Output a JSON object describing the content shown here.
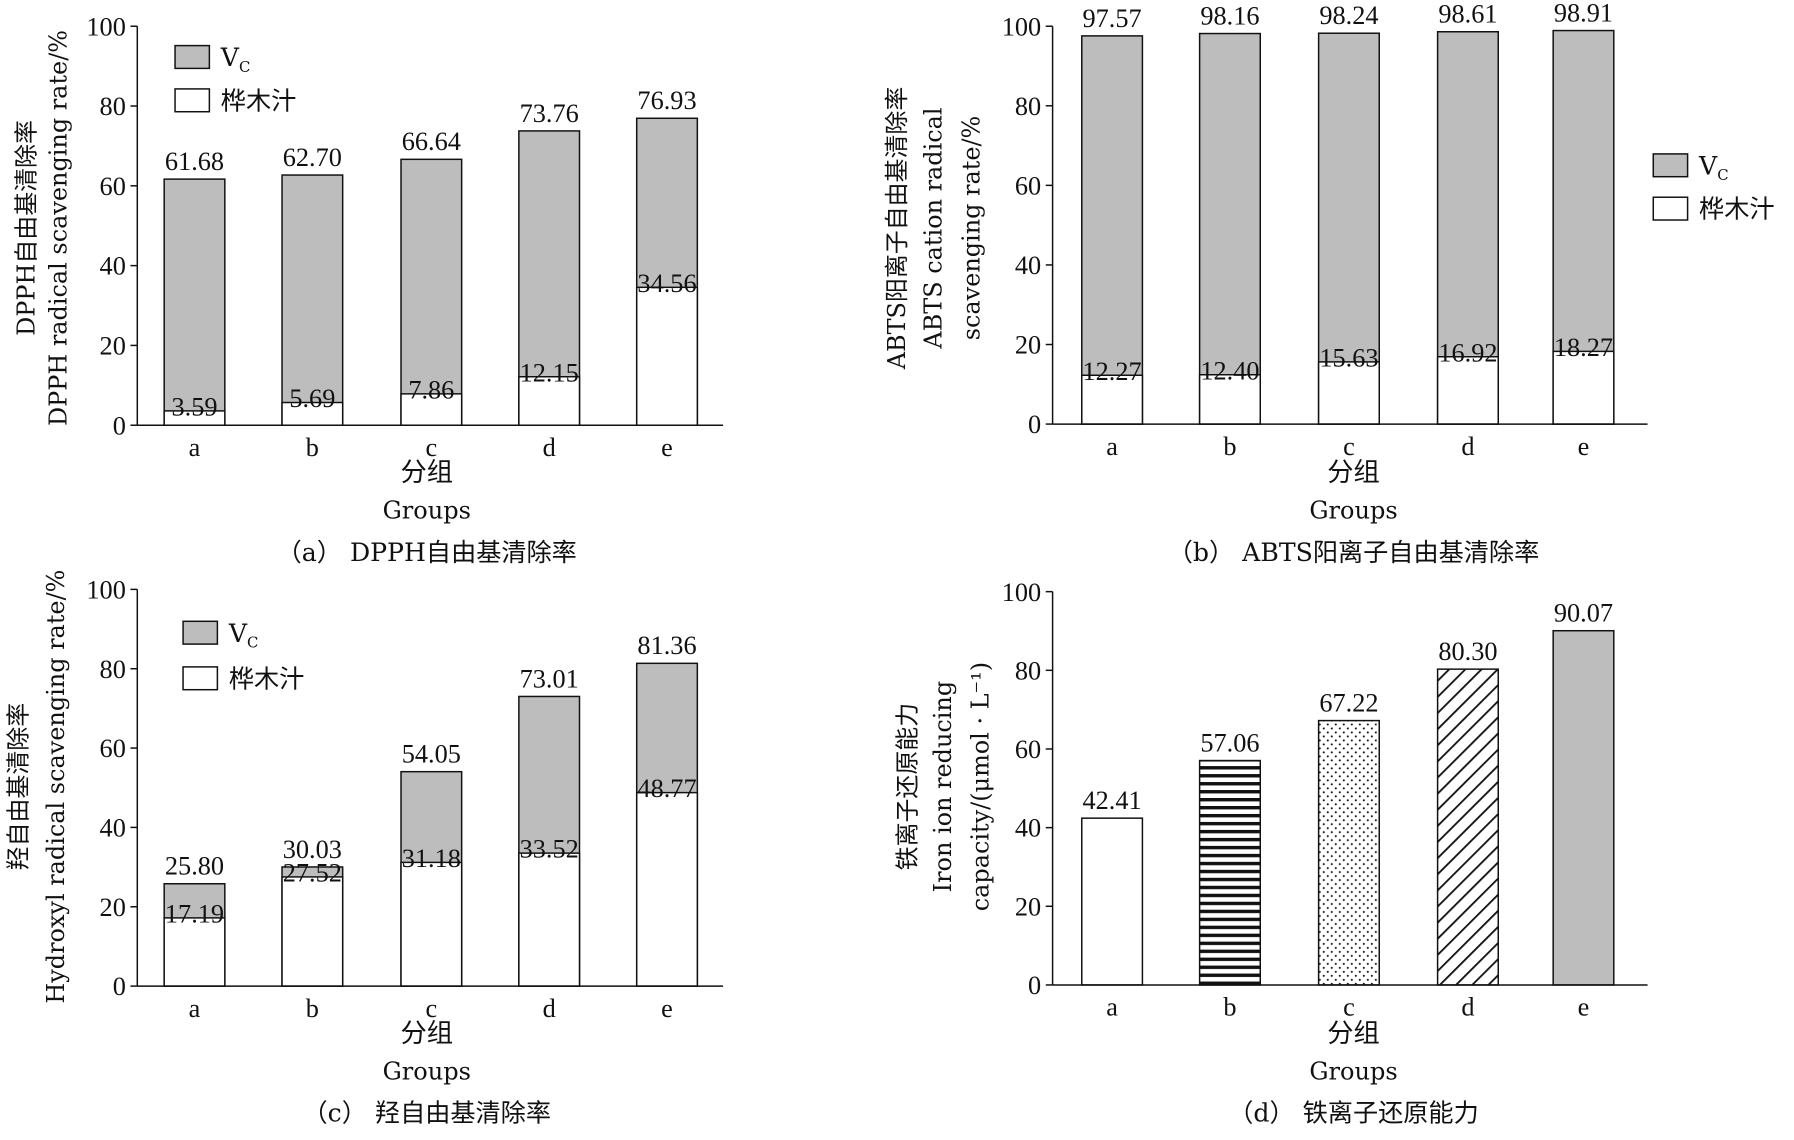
{
  "chart_data": [
    {
      "type": "bar",
      "panel": "a",
      "caption": "（a） DPPH自由基清除率",
      "categories": [
        "a",
        "b",
        "c",
        "d",
        "e"
      ],
      "xlabel": [
        "分组",
        "Groups"
      ],
      "ylabel": [
        "DPPH自由基清除率",
        "DPPH radical scavenging rate/%"
      ],
      "ylim": [
        0,
        100
      ],
      "yticks": [
        0,
        20,
        40,
        60,
        80,
        100
      ],
      "legend": {
        "position": "top-left",
        "entries": [
          {
            "name": "V",
            "sub": "C",
            "color": "#bdbdbd"
          },
          {
            "name": "桦木汁",
            "color": "#ffffff"
          }
        ]
      },
      "series": [
        {
          "name": "VC",
          "color": "#bdbdbd",
          "values": [
            61.68,
            62.7,
            66.64,
            73.76,
            76.93
          ],
          "labels": [
            "61.68",
            "62.70",
            "66.64",
            "73.76",
            "76.93"
          ]
        },
        {
          "name": "桦木汁",
          "color": "#ffffff",
          "values": [
            3.59,
            5.69,
            7.86,
            12.15,
            34.56
          ],
          "labels": [
            "3.59",
            "5.69",
            "7.86",
            "12.15",
            "34.56"
          ]
        }
      ]
    },
    {
      "type": "bar",
      "panel": "b",
      "caption": "（b） ABTS阳离子自由基清除率",
      "categories": [
        "a",
        "b",
        "c",
        "d",
        "e"
      ],
      "xlabel": [
        "分组",
        "Groups"
      ],
      "ylabel": [
        "ABTS阳离子自由基清除率",
        "ABTS cation radical",
        "scavenging rate/%"
      ],
      "ylim": [
        0,
        100
      ],
      "yticks": [
        0,
        20,
        40,
        60,
        80,
        100
      ],
      "legend": {
        "position": "right",
        "entries": [
          {
            "name": "V",
            "sub": "C",
            "color": "#bdbdbd"
          },
          {
            "name": "桦木汁",
            "color": "#ffffff"
          }
        ]
      },
      "series": [
        {
          "name": "VC",
          "color": "#bdbdbd",
          "values": [
            97.57,
            98.16,
            98.24,
            98.61,
            98.91
          ],
          "labels": [
            "97.57",
            "98.16",
            "98.24",
            "98.61",
            "98.91"
          ]
        },
        {
          "name": "桦木汁",
          "color": "#ffffff",
          "values": [
            12.27,
            12.4,
            15.63,
            16.92,
            18.27
          ],
          "labels": [
            "12.27",
            "12.40",
            "15.63",
            "16.92",
            "18.27"
          ]
        }
      ]
    },
    {
      "type": "bar",
      "panel": "c",
      "caption": "（c） 羟自由基清除率",
      "categories": [
        "a",
        "b",
        "c",
        "d",
        "e"
      ],
      "xlabel": [
        "分组",
        "Groups"
      ],
      "ylabel": [
        "羟自由基清除率",
        "Hydroxyl radical scavenging rate/%"
      ],
      "ylim": [
        0,
        100
      ],
      "yticks": [
        0,
        20,
        40,
        60,
        80,
        100
      ],
      "legend": {
        "position": "top-left",
        "entries": [
          {
            "name": "V",
            "sub": "C",
            "color": "#bdbdbd"
          },
          {
            "name": "桦木汁",
            "color": "#ffffff"
          }
        ]
      },
      "series": [
        {
          "name": "VC",
          "color": "#bdbdbd",
          "values": [
            25.8,
            30.03,
            54.05,
            73.01,
            81.36
          ],
          "labels": [
            "25.80",
            "30.03",
            "54.05",
            "73.01",
            "81.36"
          ]
        },
        {
          "name": "桦木汁",
          "color": "#ffffff",
          "values": [
            17.19,
            27.52,
            31.18,
            33.52,
            48.77
          ],
          "labels": [
            "17.19",
            "27.52",
            "31.18",
            "33.52",
            "48.77"
          ]
        }
      ]
    },
    {
      "type": "bar",
      "panel": "d",
      "caption": "（d） 铁离子还原能力",
      "categories": [
        "a",
        "b",
        "c",
        "d",
        "e"
      ],
      "xlabel": [
        "分组",
        "Groups"
      ],
      "ylabel": [
        "铁离子还原能力",
        "Iron ion reducing",
        "capacity/(μmol · L⁻¹)"
      ],
      "ylim": [
        0,
        100
      ],
      "yticks": [
        0,
        20,
        40,
        60,
        80,
        100
      ],
      "bar_fills": [
        "white",
        "horizontal-lines",
        "dots",
        "diagonal-hatch",
        "gray"
      ],
      "series": [
        {
          "values": [
            42.41,
            57.06,
            67.22,
            80.3,
            90.07
          ],
          "labels": [
            "42.41",
            "57.06",
            "67.22",
            "80.30",
            "90.07"
          ]
        }
      ]
    }
  ]
}
